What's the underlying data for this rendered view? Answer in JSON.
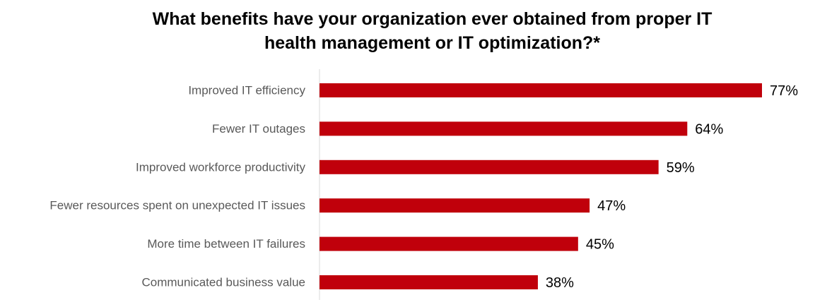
{
  "chart_data": {
    "type": "bar",
    "orientation": "horizontal",
    "title": "What benefits have your organization ever obtained from proper IT health management or IT optimization?*",
    "title_lines": [
      "What benefits have your organization ever obtained from proper IT",
      "health management or IT optimization?*"
    ],
    "categories": [
      "Improved IT efficiency",
      "Fewer IT outages",
      "Improved workforce productivity",
      "Fewer resources spent on unexpected IT issues",
      "More time between IT failures",
      "Communicated business value"
    ],
    "values": [
      77,
      64,
      59,
      47,
      45,
      38
    ],
    "value_labels": [
      "77%",
      "64%",
      "59%",
      "47%",
      "45%",
      "38%"
    ],
    "xlim": [
      0,
      77
    ],
    "xlabel": "",
    "ylabel": "",
    "grid": false,
    "legend": "none",
    "bar_color": "#C0000B",
    "axis_color": "#D9D9D9"
  }
}
